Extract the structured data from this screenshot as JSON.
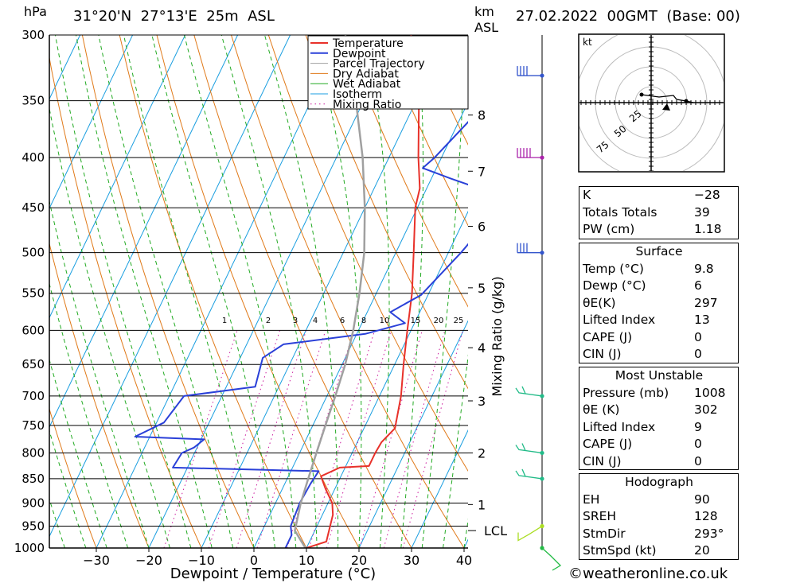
{
  "header": {
    "location": "31°20'N  27°13'E  25m  ASL",
    "datetime": "27.02.2022  00GMT  (Base: 00)",
    "unit_left": "hPa",
    "unit_km": "km",
    "unit_asl": "ASL"
  },
  "chart_data": {
    "type": "line",
    "xlabel": "Dewpoint / Temperature (°C)",
    "right_axis_label": "Mixing Ratio (g/kg)",
    "x_ticks": [
      -30,
      -20,
      -10,
      0,
      10,
      20,
      30,
      40
    ],
    "pressure_ticks": [
      300,
      350,
      400,
      450,
      500,
      550,
      600,
      650,
      700,
      750,
      800,
      850,
      900,
      950,
      1000
    ],
    "km_ticks": [
      {
        "label": "8",
        "p": 362
      },
      {
        "label": "7",
        "p": 413
      },
      {
        "label": "6",
        "p": 470
      },
      {
        "label": "5",
        "p": 543
      },
      {
        "label": "4",
        "p": 625
      },
      {
        "label": "3",
        "p": 708
      },
      {
        "label": "2",
        "p": 800
      },
      {
        "label": "1",
        "p": 903
      },
      {
        "label": "LCL",
        "p": 960
      }
    ],
    "mixing_ratio_labels": [
      "1",
      "2",
      "3",
      "4",
      "6",
      "8",
      "10",
      "15",
      "20",
      "25"
    ],
    "legend": [
      {
        "name": "Temperature",
        "color": "#e8312a"
      },
      {
        "name": "Dewpoint",
        "color": "#2a40d8"
      },
      {
        "name": "Parcel Trajectory",
        "color": "#a0a0a0"
      },
      {
        "name": "Dry Adiabat",
        "color": "#e07a1a"
      },
      {
        "name": "Wet Adiabat",
        "color": "#22aa22"
      },
      {
        "name": "Isotherm",
        "color": "#1a9ee0"
      },
      {
        "name": "Mixing Ratio",
        "color": "#cc1a9e"
      }
    ],
    "series": [
      {
        "name": "Temperature",
        "color": "#e8312a",
        "points": [
          [
            1000,
            10.0
          ],
          [
            985,
            13.2
          ],
          [
            950,
            12.5
          ],
          [
            925,
            12.0
          ],
          [
            900,
            10.8
          ],
          [
            870,
            8.2
          ],
          [
            845,
            6.2
          ],
          [
            828,
            9.0
          ],
          [
            825,
            14.4
          ],
          [
            800,
            14.4
          ],
          [
            780,
            14.6
          ],
          [
            755,
            15.9
          ],
          [
            700,
            14.1
          ],
          [
            650,
            11.7
          ],
          [
            600,
            9.3
          ],
          [
            550,
            6.8
          ],
          [
            500,
            3.4
          ],
          [
            450,
            -0.4
          ],
          [
            430,
            -1.3
          ],
          [
            400,
            -4.4
          ],
          [
            350,
            -9.5
          ],
          [
            300,
            -17.0
          ]
        ]
      },
      {
        "name": "Dewpoint",
        "color": "#2a40d8",
        "points": [
          [
            1000,
            6.0
          ],
          [
            970,
            6.0
          ],
          [
            950,
            5.0
          ],
          [
            900,
            4.6
          ],
          [
            860,
            4.9
          ],
          [
            835,
            5.3
          ],
          [
            828,
            -22.8
          ],
          [
            800,
            -22.4
          ],
          [
            790,
            -20.6
          ],
          [
            775,
            -19.4
          ],
          [
            770,
            -32.8
          ],
          [
            745,
            -28.6
          ],
          [
            700,
            -27.2
          ],
          [
            685,
            -14.5
          ],
          [
            640,
            -15.7
          ],
          [
            620,
            -13.0
          ],
          [
            605,
            1.6
          ],
          [
            590,
            8.2
          ],
          [
            575,
            4.4
          ],
          [
            552,
            8.7
          ],
          [
            500,
            12.4
          ],
          [
            440,
            16.2
          ],
          [
            420,
            3.6
          ],
          [
            410,
            -2.6
          ],
          [
            400,
            -1.3
          ],
          [
            330,
            5.9
          ],
          [
            300,
            5.9
          ]
        ]
      },
      {
        "name": "Parcel Trajectory",
        "color": "#a0a0a0",
        "points": [
          [
            1000,
            9.8
          ],
          [
            960,
            6.2
          ],
          [
            900,
            4.8
          ],
          [
            850,
            4.0
          ],
          [
            800,
            3.2
          ],
          [
            750,
            2.4
          ],
          [
            700,
            1.6
          ],
          [
            650,
            0.6
          ],
          [
            600,
            -1.0
          ],
          [
            550,
            -3.2
          ],
          [
            500,
            -6.0
          ],
          [
            450,
            -10.0
          ],
          [
            400,
            -15.0
          ],
          [
            350,
            -21.5
          ],
          [
            300,
            -29.5
          ]
        ]
      }
    ],
    "wind_barbs": [
      {
        "p": 1000,
        "color": "#22bb44"
      },
      {
        "p": 950,
        "color": "#aadd22"
      },
      {
        "p": 850,
        "color": "#22bb88"
      },
      {
        "p": 800,
        "color": "#22bb88"
      },
      {
        "p": 700,
        "color": "#22bb88"
      },
      {
        "p": 500,
        "color": "#3355cc"
      },
      {
        "p": 400,
        "color": "#aa22aa"
      },
      {
        "p": 330,
        "color": "#3355cc"
      }
    ],
    "hodograph": {
      "unit": "kt",
      "ring_labels": [
        "25",
        "50",
        "75"
      ]
    }
  },
  "indices": {
    "general": [
      {
        "label": "K",
        "value": "-28"
      },
      {
        "label": "Totals Totals",
        "value": "39"
      },
      {
        "label": "PW (cm)",
        "value": "1.18"
      }
    ],
    "surface": {
      "title": "Surface",
      "rows": [
        {
          "label": "Temp (°C)",
          "value": "9.8"
        },
        {
          "label": "Dewp (°C)",
          "value": "6"
        },
        {
          "label": "θE(K)",
          "value": "297"
        },
        {
          "label": "Lifted Index",
          "value": "13"
        },
        {
          "label": "CAPE (J)",
          "value": "0"
        },
        {
          "label": "CIN (J)",
          "value": "0"
        }
      ]
    },
    "most_unstable": {
      "title": "Most Unstable",
      "rows": [
        {
          "label": "Pressure (mb)",
          "value": "1008"
        },
        {
          "label": "θE (K)",
          "value": "302"
        },
        {
          "label": "Lifted Index",
          "value": "9"
        },
        {
          "label": "CAPE (J)",
          "value": "0"
        },
        {
          "label": "CIN (J)",
          "value": "0"
        }
      ]
    },
    "hodograph_box": {
      "title": "Hodograph",
      "rows": [
        {
          "label": "EH",
          "value": "90"
        },
        {
          "label": "SREH",
          "value": "128"
        },
        {
          "label": "StmDir",
          "value": "293°"
        },
        {
          "label": "StmSpd (kt)",
          "value": "20"
        }
      ]
    }
  },
  "footer": "©weatheronline.co.uk"
}
